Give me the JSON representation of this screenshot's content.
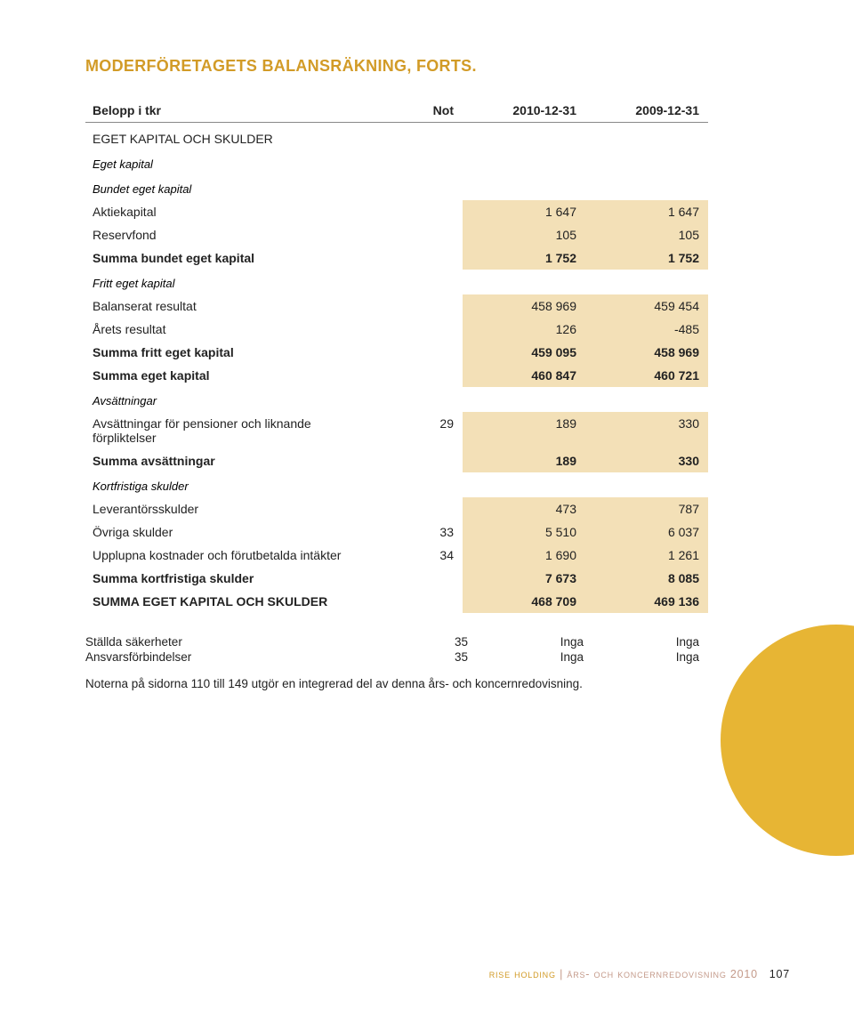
{
  "title": "MODERFÖRETAGETS BALANSRÄKNING, FORTS.",
  "colors": {
    "accent": "#d29b27",
    "row_shade": "#f3e0b7",
    "circle": "#e7b534",
    "footer_brand": "#d29b27",
    "footer_doc": "#c49a8a"
  },
  "table": {
    "header": {
      "c0": "Belopp i tkr",
      "c1": "Not",
      "c2": "2010-12-31",
      "c3": "2009-12-31"
    },
    "rows": [
      {
        "kind": "sectionUpper",
        "c0": "EGET KAPITAL OCH SKULDER"
      },
      {
        "kind": "section",
        "c0": "Eget kapital"
      },
      {
        "kind": "section",
        "c0": "Bundet eget kapital"
      },
      {
        "kind": "data",
        "c0": "Aktiekapital",
        "c2": "1 647",
        "c3": "1 647"
      },
      {
        "kind": "data",
        "c0": "Reservfond",
        "c2": "105",
        "c3": "105"
      },
      {
        "kind": "totalShade",
        "c0": "Summa bundet eget kapital",
        "c2": "1 752",
        "c3": "1 752"
      },
      {
        "kind": "section",
        "c0": "Fritt eget kapital"
      },
      {
        "kind": "data",
        "c0": "Balanserat resultat",
        "c2": "458 969",
        "c3": "459 454"
      },
      {
        "kind": "data",
        "c0": "Årets resultat",
        "c2": "126",
        "c3": "-485"
      },
      {
        "kind": "totalShade",
        "c0": "Summa fritt eget kapital",
        "c2": "459 095",
        "c3": "458 969"
      },
      {
        "kind": "totalShade",
        "c0": "Summa eget kapital",
        "c2": "460 847",
        "c3": "460 721"
      },
      {
        "kind": "section",
        "c0": "Avsättningar"
      },
      {
        "kind": "data",
        "c0": "Avsättningar för pensioner och liknande förpliktelser",
        "c1": "29",
        "c2": "189",
        "c3": "330"
      },
      {
        "kind": "totalShade",
        "c0": "Summa avsättningar",
        "c2": "189",
        "c3": "330"
      },
      {
        "kind": "section",
        "c0": "Kortfristiga skulder"
      },
      {
        "kind": "data",
        "c0": "Leverantörsskulder",
        "c2": "473",
        "c3": "787"
      },
      {
        "kind": "data",
        "c0": "Övriga skulder",
        "c1": "33",
        "c2": "5 510",
        "c3": "6 037"
      },
      {
        "kind": "data",
        "c0": "Upplupna kostnader och förutbetalda intäkter",
        "c1": "34",
        "c2": "1 690",
        "c3": "1 261"
      },
      {
        "kind": "totalShade",
        "c0": "Summa kortfristiga skulder",
        "c2": "7 673",
        "c3": "8 085"
      },
      {
        "kind": "grandShade",
        "c0": "SUMMA EGET KAPITAL OCH SKULDER",
        "c2": "468 709",
        "c3": "469 136"
      }
    ]
  },
  "extras": [
    {
      "c0": "Ställda säkerheter",
      "c1": "35",
      "c2": "Inga",
      "c3": "Inga"
    },
    {
      "c0": "Ansvarsförbindelser",
      "c1": "35",
      "c2": "Inga",
      "c3": "Inga"
    }
  ],
  "footnote": "Noterna på sidorna 110 till 149 utgör en integrerad del av denna års- och koncernredovisning.",
  "footer": {
    "brand": "rise holding",
    "sep": " | ",
    "doc": "års- och koncernredovisning 2010",
    "page": "107"
  }
}
